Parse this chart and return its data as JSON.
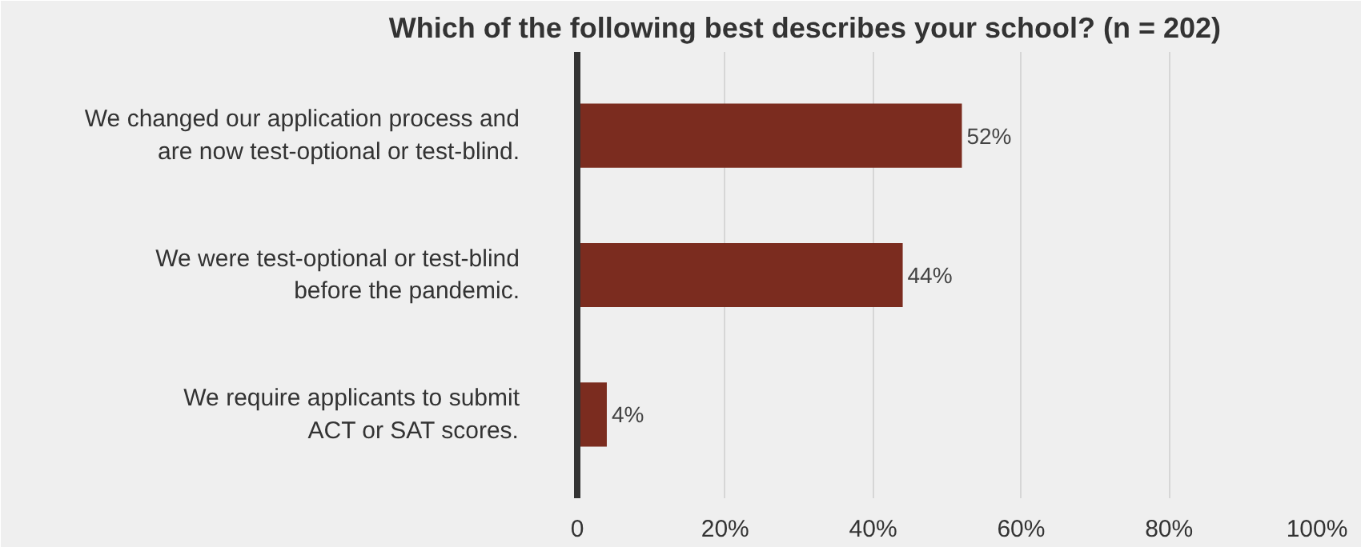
{
  "chart_data": {
    "type": "bar",
    "orientation": "horizontal",
    "title": "Which of the following best describes your school? (n = 202)",
    "categories": [
      "We changed our application process and\nare now test-optional or test-blind.",
      "We were test-optional or test-blind\nbefore the pandemic.",
      "We require applicants to submit\nACT or SAT scores."
    ],
    "values": [
      52,
      44,
      4
    ],
    "color": "#7b2c1f",
    "value_labels": [
      "52%",
      "44%",
      "4%"
    ],
    "xlim": [
      0,
      100
    ],
    "xticks": [
      0,
      {
        "value": 20,
        "label": "20%"
      },
      {
        "value": 40,
        "label": "40%"
      },
      {
        "value": 60,
        "label": "60%"
      },
      {
        "value": 80,
        "label": "80%"
      },
      {
        "value": 100,
        "label": "100%"
      }
    ],
    "grid": "x"
  }
}
